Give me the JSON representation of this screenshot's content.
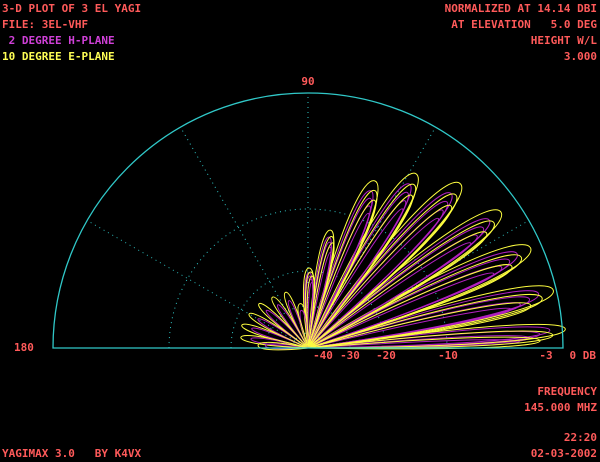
{
  "header_left": {
    "title": "3-D PLOT OF 3 EL YAGI",
    "file": "FILE: 3EL-VHF",
    "h_plane": " 2 DEGREE H-PLANE",
    "e_plane": "10 DEGREE E-PLANE"
  },
  "header_right": {
    "normalized": "NORMALIZED AT 14.14 DBI",
    "elevation": "AT ELEVATION   5.0 DEG",
    "height_label": "HEIGHT W/L",
    "height_value": "3.000"
  },
  "plot": {
    "angle_top": "90",
    "angle_left": "180",
    "db_labels": [
      "-40",
      "-30",
      "-20",
      "-10",
      "-3",
      "0 DB"
    ]
  },
  "footer_right": {
    "frequency_label": "FREQUENCY",
    "frequency_value": "145.000 MHZ",
    "time": "22:20",
    "date": "02-03-2002"
  },
  "footer_left": {
    "program": "YAGIMAX 3.0   BY K4VX"
  }
}
